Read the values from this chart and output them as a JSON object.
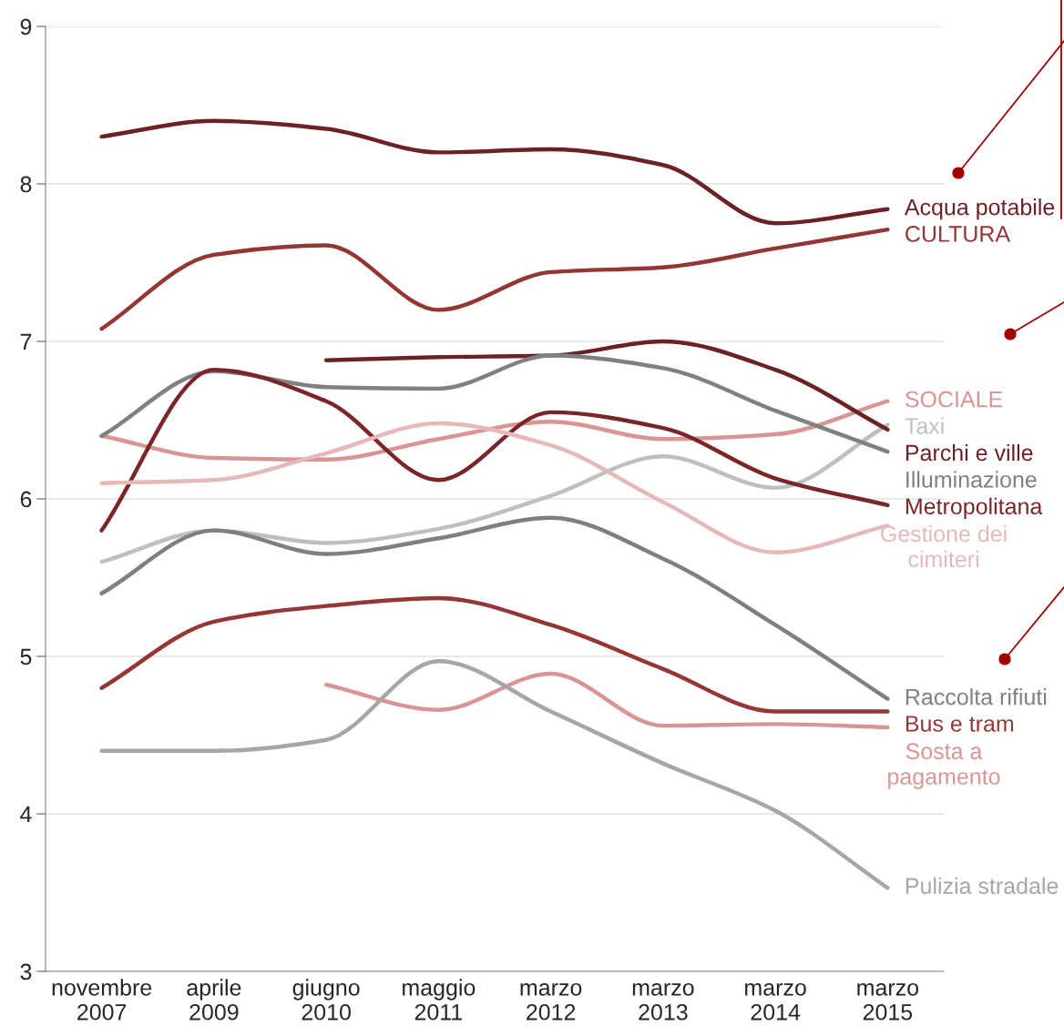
{
  "chart_data": {
    "type": "line",
    "categories": [
      "novembre\n2007",
      "aprile\n2009",
      "giugno\n2010",
      "maggio\n2011",
      "marzo\n2012",
      "marzo\n2013",
      "marzo\n2014",
      "marzo\n2015"
    ],
    "ylim": [
      3,
      9
    ],
    "yticks": [
      3,
      4,
      5,
      6,
      7,
      8,
      9
    ],
    "grid": "y",
    "legend": false,
    "marker": "none",
    "line_style": "solid",
    "series": [
      {
        "name": "Acqua potabile",
        "color": "#6b2125",
        "values": [
          8.3,
          8.4,
          8.35,
          8.2,
          8.22,
          8.12,
          7.75,
          7.84
        ]
      },
      {
        "name": "CULTURA",
        "color": "#943634",
        "values": [
          7.08,
          7.55,
          7.61,
          7.2,
          7.44,
          7.47,
          7.59,
          7.71
        ]
      },
      {
        "name": "SOCIALE",
        "color": "#d99594",
        "values": [
          6.4,
          6.26,
          6.25,
          6.38,
          6.49,
          6.38,
          6.41,
          6.62
        ]
      },
      {
        "name": "Taxi",
        "color": "#bfbfbf",
        "values": [
          5.6,
          5.8,
          5.72,
          5.81,
          6.02,
          6.27,
          6.07,
          6.47
        ]
      },
      {
        "name": "Parchi e ville",
        "color": "#6b2125",
        "values": [
          null,
          null,
          6.88,
          6.9,
          6.91,
          7.0,
          6.82,
          6.44
        ]
      },
      {
        "name": "Illuminazione",
        "color": "#808080",
        "values": [
          6.4,
          6.81,
          6.71,
          6.7,
          6.91,
          6.83,
          6.56,
          6.3
        ]
      },
      {
        "name": "Metropolitana",
        "color": "#7a2528",
        "values": [
          5.8,
          6.82,
          6.62,
          6.12,
          6.55,
          6.45,
          6.13,
          5.96
        ]
      },
      {
        "name": "Gestione dei\ncimiteri",
        "color": "#e6b9b8",
        "values": [
          6.1,
          6.12,
          6.29,
          6.48,
          6.34,
          5.98,
          5.66,
          5.83
        ]
      },
      {
        "name": "Raccolta rifiuti",
        "color": "#7f7f7f",
        "values": [
          5.4,
          5.8,
          5.65,
          5.75,
          5.88,
          5.62,
          5.2,
          4.73
        ]
      },
      {
        "name": "Bus e tram",
        "color": "#943634",
        "values": [
          4.8,
          5.22,
          5.32,
          5.37,
          5.2,
          4.92,
          4.65,
          4.65
        ]
      },
      {
        "name": "Sosta a\npagamento",
        "color": "#d99594",
        "values": [
          null,
          null,
          4.82,
          4.66,
          4.89,
          4.56,
          4.57,
          4.55
        ]
      },
      {
        "name": "Pulizia stradale",
        "color": "#a6a6a6",
        "values": [
          4.4,
          4.4,
          4.47,
          4.97,
          4.65,
          4.32,
          4.02,
          3.53
        ]
      }
    ]
  }
}
